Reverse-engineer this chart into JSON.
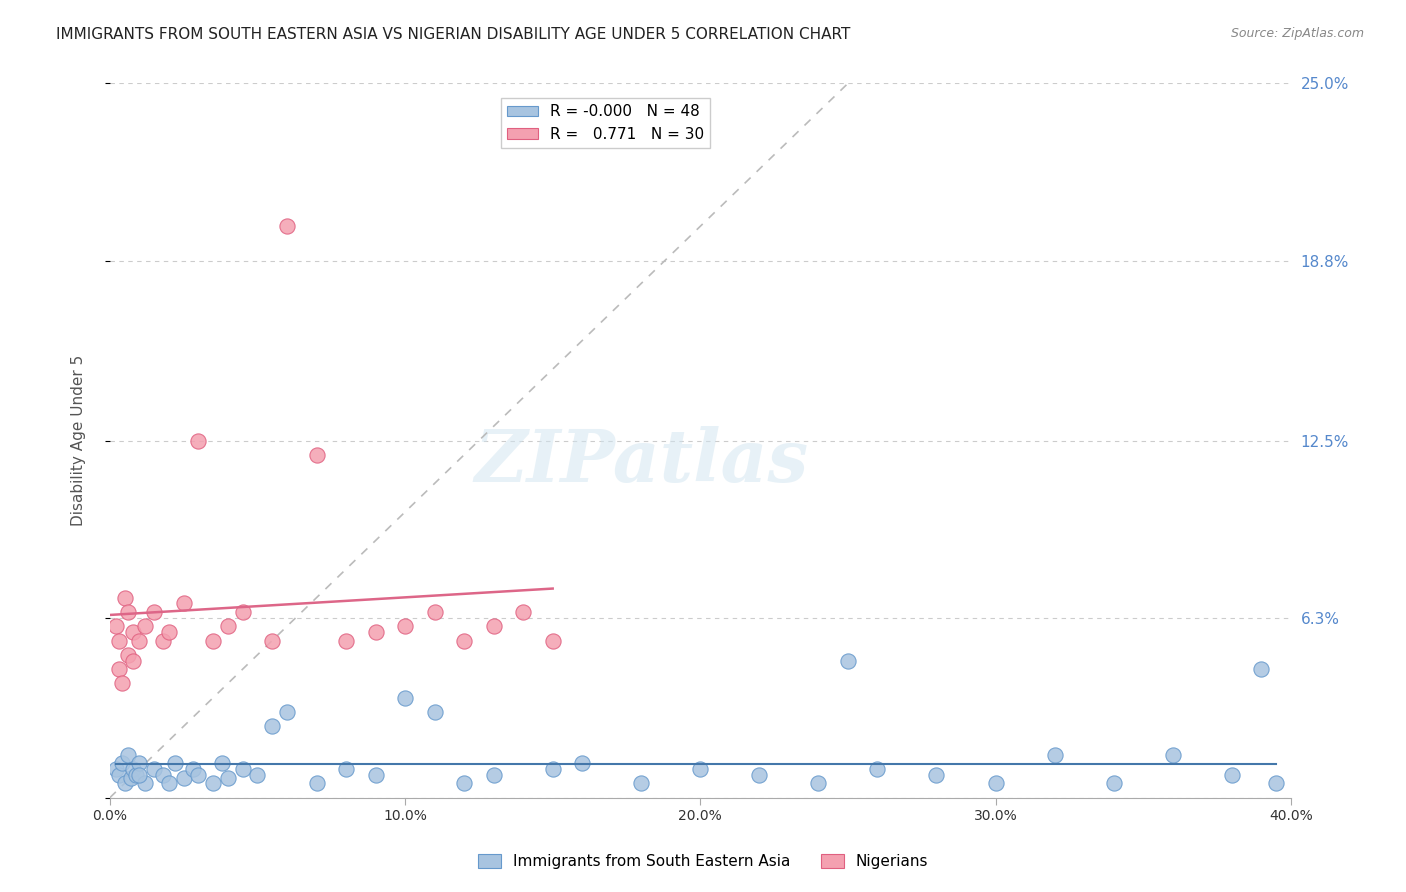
{
  "title": "IMMIGRANTS FROM SOUTH EASTERN ASIA VS NIGERIAN DISABILITY AGE UNDER 5 CORRELATION CHART",
  "source": "Source: ZipAtlas.com",
  "xlabel": "",
  "ylabel": "Disability Age Under 5",
  "xlim": [
    0.0,
    0.4
  ],
  "ylim": [
    0.0,
    0.25
  ],
  "yticks": [
    0.0,
    0.063,
    0.125,
    0.188,
    0.25
  ],
  "ytick_labels": [
    "",
    "6.3%",
    "12.5%",
    "18.8%",
    "25.0%"
  ],
  "xticks": [
    0.0,
    0.1,
    0.2,
    0.3,
    0.4
  ],
  "xtick_labels": [
    "0.0%",
    "10.0%",
    "20.0%",
    "30.0%",
    "40.0%"
  ],
  "blue_color": "#a8c4e0",
  "pink_color": "#f4a0b0",
  "blue_edge": "#6699cc",
  "pink_edge": "#e06080",
  "blue_r": "-0.000",
  "blue_n": "48",
  "pink_r": "0.771",
  "pink_n": "30",
  "blue_line_color": "#4477aa",
  "pink_line_color": "#dd6688",
  "ref_line_color": "#bbbbbb",
  "watermark": "ZIPatlas",
  "blue_scatter_x": [
    0.002,
    0.003,
    0.004,
    0.005,
    0.006,
    0.007,
    0.008,
    0.009,
    0.01,
    0.012,
    0.015,
    0.018,
    0.02,
    0.022,
    0.025,
    0.028,
    0.03,
    0.035,
    0.038,
    0.04,
    0.045,
    0.05,
    0.055,
    0.06,
    0.07,
    0.08,
    0.09,
    0.1,
    0.11,
    0.12,
    0.13,
    0.15,
    0.16,
    0.18,
    0.2,
    0.22,
    0.24,
    0.25,
    0.26,
    0.28,
    0.3,
    0.32,
    0.34,
    0.36,
    0.38,
    0.39,
    0.395,
    0.01
  ],
  "blue_scatter_y": [
    0.01,
    0.008,
    0.012,
    0.005,
    0.015,
    0.007,
    0.01,
    0.008,
    0.012,
    0.005,
    0.01,
    0.008,
    0.005,
    0.012,
    0.007,
    0.01,
    0.008,
    0.005,
    0.012,
    0.007,
    0.01,
    0.008,
    0.025,
    0.03,
    0.005,
    0.01,
    0.008,
    0.035,
    0.03,
    0.005,
    0.008,
    0.01,
    0.012,
    0.005,
    0.01,
    0.008,
    0.005,
    0.048,
    0.01,
    0.008,
    0.005,
    0.015,
    0.005,
    0.015,
    0.008,
    0.045,
    0.005,
    0.008
  ],
  "pink_scatter_x": [
    0.002,
    0.003,
    0.005,
    0.006,
    0.008,
    0.01,
    0.012,
    0.015,
    0.018,
    0.02,
    0.025,
    0.03,
    0.035,
    0.04,
    0.045,
    0.055,
    0.06,
    0.07,
    0.08,
    0.09,
    0.1,
    0.11,
    0.12,
    0.13,
    0.14,
    0.15,
    0.003,
    0.004,
    0.006,
    0.008
  ],
  "pink_scatter_y": [
    0.06,
    0.055,
    0.07,
    0.065,
    0.058,
    0.055,
    0.06,
    0.065,
    0.055,
    0.058,
    0.068,
    0.125,
    0.055,
    0.06,
    0.065,
    0.055,
    0.2,
    0.12,
    0.055,
    0.058,
    0.06,
    0.065,
    0.055,
    0.06,
    0.065,
    0.055,
    0.045,
    0.04,
    0.05,
    0.048
  ]
}
